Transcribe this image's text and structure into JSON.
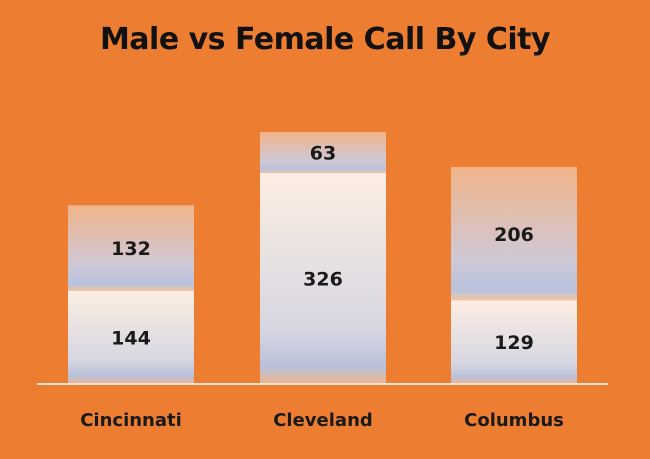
{
  "chart_data": {
    "type": "bar",
    "stacked": true,
    "title": "Male vs Female Call By City",
    "categories": [
      "Cincinnati",
      "Cleveland",
      "Columbus"
    ],
    "series": [
      {
        "values": [
          144,
          326,
          129
        ]
      },
      {
        "values": [
          132,
          63,
          206
        ]
      }
    ],
    "ylim": [
      0,
      420
    ],
    "grid": false,
    "legend": "none",
    "colors": {
      "background": "#ed7d31",
      "bar_light": "#fdeee2",
      "bar_mid": "#c9ccdc",
      "bar_orange": "#f1b48a",
      "baseline": "#f6e3d4",
      "text": "#1a1a1a"
    }
  }
}
